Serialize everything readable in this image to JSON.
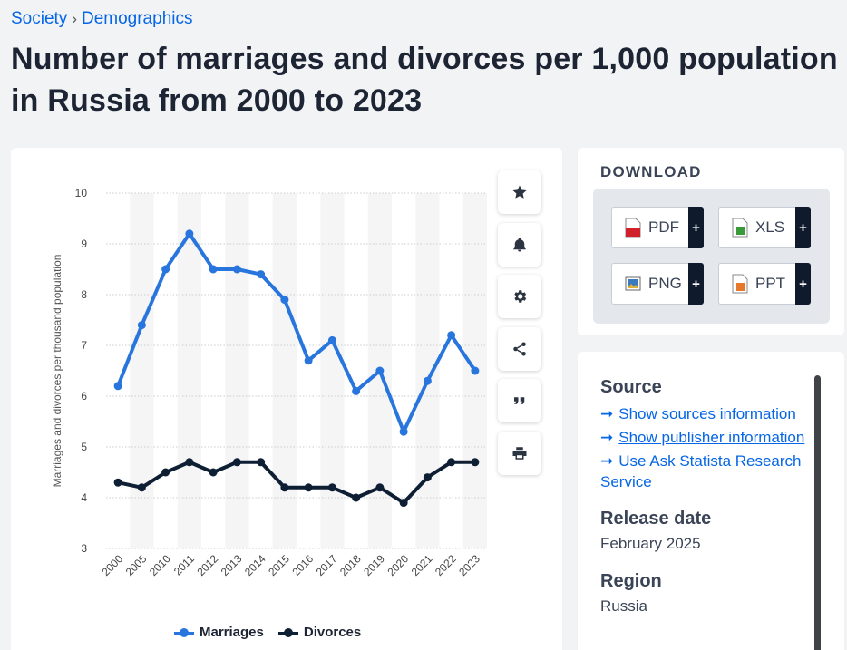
{
  "breadcrumb": {
    "items": [
      "Society",
      "Demographics"
    ],
    "separator": "›"
  },
  "title": "Number of marriages and divorces per 1,000 population in Russia from 2000 to 2023",
  "tools": [
    {
      "name": "favorite-icon"
    },
    {
      "name": "notification-bell-icon"
    },
    {
      "name": "settings-gear-icon"
    },
    {
      "name": "share-icon"
    },
    {
      "name": "cite-quote-icon"
    },
    {
      "name": "print-icon"
    }
  ],
  "chart_data": {
    "type": "line",
    "categories": [
      "2000",
      "2005",
      "2010",
      "2011",
      "2012",
      "2013",
      "2014",
      "2015",
      "2016",
      "2017",
      "2018",
      "2019",
      "2020",
      "2021",
      "2022",
      "2023"
    ],
    "series": [
      {
        "name": "Marriages",
        "color": "#2876dd",
        "values": [
          6.2,
          7.4,
          8.5,
          9.2,
          8.5,
          8.5,
          8.4,
          7.9,
          6.7,
          7.1,
          6.1,
          6.5,
          5.3,
          6.3,
          7.2,
          6.5
        ]
      },
      {
        "name": "Divorces",
        "color": "#0f1f33",
        "values": [
          4.3,
          4.2,
          4.5,
          4.7,
          4.5,
          4.7,
          4.7,
          4.2,
          4.2,
          4.2,
          4.0,
          4.2,
          3.9,
          4.4,
          4.7,
          4.7
        ]
      }
    ],
    "ylabel": "Marriages and divorces per thousand population",
    "xlabel": "",
    "ylim": [
      3,
      10
    ],
    "yticks": [
      3,
      4,
      5,
      6,
      7,
      8,
      9,
      10
    ],
    "grid": true,
    "legend": "bottom"
  },
  "download": {
    "title": "DOWNLOAD",
    "buttons": [
      {
        "label": "PDF",
        "plus": "+",
        "icon": "pdf-file-icon",
        "color": "#d0202a"
      },
      {
        "label": "XLS",
        "plus": "+",
        "icon": "xls-file-icon",
        "color": "#3a9a3a"
      },
      {
        "label": "PNG",
        "plus": "+",
        "icon": "png-file-icon",
        "color": "#3b7bbd"
      },
      {
        "label": "PPT",
        "plus": "+",
        "icon": "ppt-file-icon",
        "color": "#e5782a"
      }
    ]
  },
  "info": {
    "source_heading": "Source",
    "links": [
      {
        "text": "Show sources information",
        "underline": false
      },
      {
        "text": "Show publisher information",
        "underline": true
      },
      {
        "text": "Use Ask Statista Research Service",
        "underline": false
      }
    ],
    "arrow": "➞",
    "release_heading": "Release date",
    "release_value": "February 2025",
    "region_heading": "Region",
    "region_value": "Russia"
  }
}
